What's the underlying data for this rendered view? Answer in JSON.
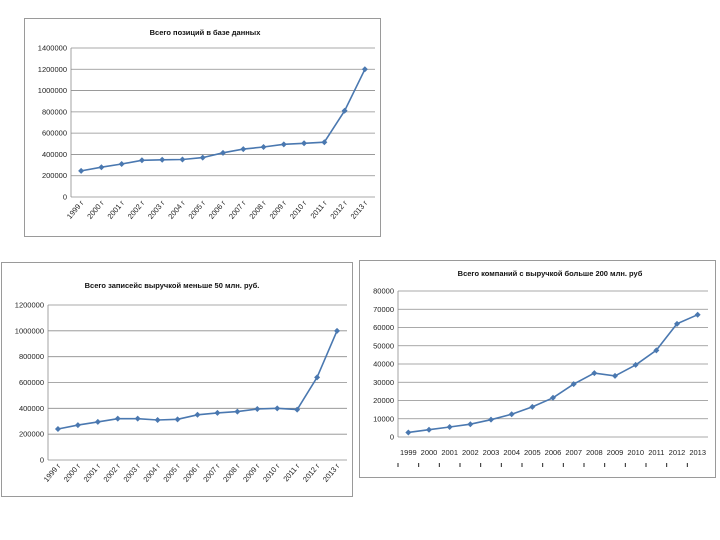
{
  "chart_data": [
    {
      "type": "line",
      "title": "Всего позиций в базе данных",
      "categories": [
        "1999 г",
        "2000 г",
        "2001 г",
        "2002 г",
        "2003 г",
        "2004 г",
        "2005 г",
        "2006 г",
        "2007 г",
        "2008 г",
        "2009 г",
        "2010 г",
        "2011 г",
        "2012 г",
        "2013 г"
      ],
      "values": [
        245000,
        280000,
        310000,
        345000,
        350000,
        352000,
        370000,
        415000,
        450000,
        470000,
        495000,
        505000,
        515000,
        810000,
        1200000
      ],
      "yticks": [
        0,
        200000,
        400000,
        600000,
        800000,
        1000000,
        1200000,
        1400000
      ],
      "ylim": [
        0,
        1400000
      ],
      "xlabel": "",
      "ylabel": "",
      "color": "#4a78b0"
    },
    {
      "type": "line",
      "title": "Всего записейс выручкой меньше 50 млн. руб.",
      "categories": [
        "1999 г",
        "2000 г",
        "2001 г",
        "2002 г",
        "2003 г",
        "2004 г",
        "2005 г",
        "2006 г",
        "2007 г",
        "2008 г",
        "2009 г",
        "2010 г",
        "2011 г",
        "2012 г",
        "2013 г"
      ],
      "values": [
        240000,
        270000,
        295000,
        320000,
        320000,
        310000,
        315000,
        350000,
        365000,
        375000,
        395000,
        400000,
        390000,
        640000,
        1000000
      ],
      "yticks": [
        0,
        200000,
        400000,
        600000,
        800000,
        1000000,
        1200000
      ],
      "ylim": [
        0,
        1200000
      ],
      "xlabel": "",
      "ylabel": "",
      "color": "#4a78b0"
    },
    {
      "type": "line",
      "title": "Всего компаний с выручкой больше 200 млн. руб",
      "categories": [
        "1999",
        "2000",
        "2001",
        "2002",
        "2003",
        "2004",
        "2005",
        "2006",
        "2007",
        "2008",
        "2009",
        "2010",
        "2011",
        "2012",
        "2013"
      ],
      "values": [
        2500,
        4000,
        5500,
        7000,
        9500,
        12500,
        16500,
        21500,
        29000,
        35000,
        33500,
        39500,
        47500,
        62000,
        67000
      ],
      "yticks": [
        0,
        10000,
        20000,
        30000,
        40000,
        50000,
        60000,
        70000,
        80000
      ],
      "ylim": [
        0,
        80000
      ],
      "xlabel": "",
      "ylabel": "",
      "color": "#4a78b0"
    }
  ]
}
